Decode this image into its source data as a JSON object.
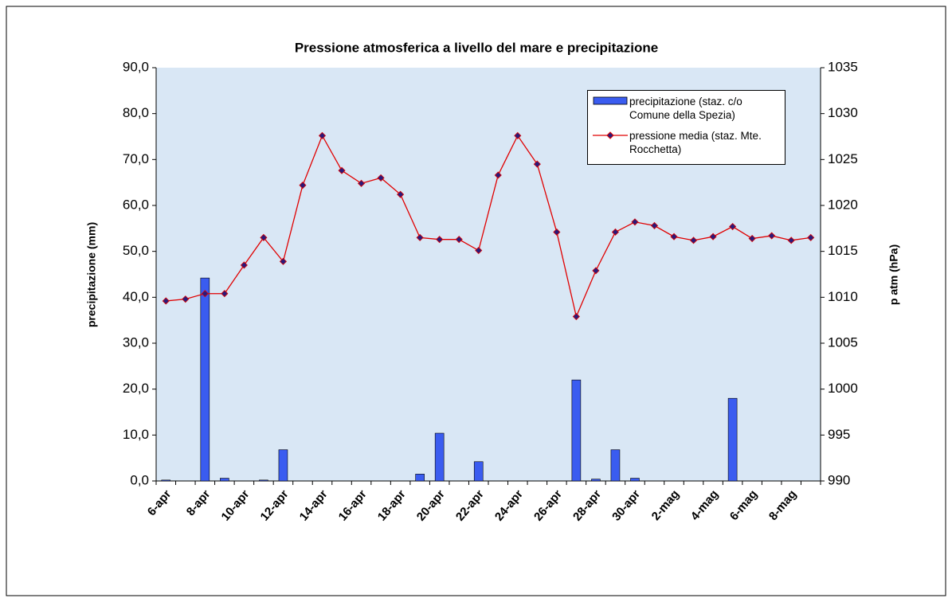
{
  "chart_data": {
    "type": "bar+line",
    "title": "Pressione atmosferica a livello del mare e precipitazione",
    "y_label": "precipitazione (mm)",
    "y2_label": "p atm (hPa)",
    "categories": [
      "6-apr",
      null,
      "8-apr",
      null,
      "10-apr",
      null,
      "12-apr",
      null,
      "14-apr",
      null,
      "16-apr",
      null,
      "18-apr",
      null,
      "20-apr",
      null,
      "22-apr",
      null,
      "24-apr",
      null,
      "26-apr",
      null,
      "28-apr",
      null,
      "30-apr",
      null,
      "2-mag",
      null,
      "4-mag",
      null,
      "6-mag",
      null,
      "8-mag",
      null
    ],
    "series": [
      {
        "name": "precipitazione (staz. c/o Comune della Spezia)",
        "type": "bar",
        "axis": "y",
        "color": "#3a5cf0",
        "values": [
          0.2,
          0,
          44.2,
          0.6,
          0,
          0.2,
          6.8,
          0,
          0,
          0,
          0,
          0,
          0,
          1.5,
          10.4,
          0,
          4.2,
          0,
          0,
          0,
          0,
          22.0,
          0.4,
          6.8,
          0.6,
          0,
          0,
          0,
          0,
          18.0,
          0,
          0,
          0,
          0
        ]
      },
      {
        "name": "pressione media (staz. Mte. Rocchetta)",
        "type": "line",
        "axis": "y2",
        "color": "#e00000",
        "marker_color": "#2a1a7a",
        "values": [
          1009.6,
          1009.8,
          1010.4,
          1010.4,
          1013.5,
          1016.5,
          1013.9,
          1022.2,
          1027.6,
          1023.8,
          1022.4,
          1023.0,
          1021.2,
          1016.5,
          1016.3,
          1016.3,
          1015.1,
          1023.3,
          1027.6,
          1024.5,
          1017.1,
          1007.9,
          1012.9,
          1017.1,
          1018.2,
          1017.8,
          1016.6,
          1016.2,
          1016.6,
          1017.7,
          1016.4,
          1016.7,
          1016.2,
          1016.5
        ]
      }
    ],
    "ylim": [
      0,
      90
    ],
    "yticks": [
      {
        "value": 0,
        "label": "0,0"
      },
      {
        "value": 10,
        "label": "10,0"
      },
      {
        "value": 20,
        "label": "20,0"
      },
      {
        "value": 30,
        "label": "30,0"
      },
      {
        "value": 40,
        "label": "40,0"
      },
      {
        "value": 50,
        "label": "50,0"
      },
      {
        "value": 60,
        "label": "60,0"
      },
      {
        "value": 70,
        "label": "70,0"
      },
      {
        "value": 80,
        "label": "80,0"
      },
      {
        "value": 90,
        "label": "90,0"
      }
    ],
    "y2lim": [
      990,
      1035
    ],
    "y2ticks": [
      990,
      995,
      1000,
      1005,
      1010,
      1015,
      1020,
      1025,
      1030,
      1035
    ],
    "legend": "top-right",
    "plot_background": "#d9e7f5"
  }
}
